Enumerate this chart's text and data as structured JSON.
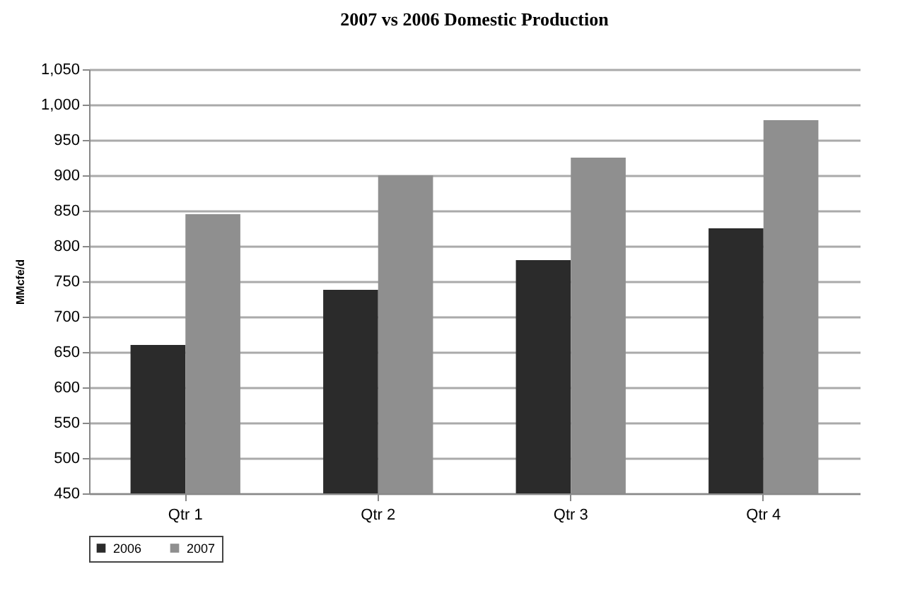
{
  "chart_data": {
    "type": "bar",
    "title": "2007 vs 2006 Domestic Production",
    "ylabel": "MMcfe/d",
    "categories": [
      "Qtr 1",
      "Qtr 2",
      "Qtr 3",
      "Qtr 4"
    ],
    "series": [
      {
        "name": "2006",
        "color": "#2b2b2b",
        "values": [
          660,
          738,
          780,
          825
        ]
      },
      {
        "name": "2007",
        "color": "#8f8f8f",
        "values": [
          845,
          900,
          925,
          978
        ]
      }
    ],
    "ylim": [
      450,
      1050
    ],
    "yticks": [
      450,
      500,
      550,
      600,
      650,
      700,
      750,
      800,
      850,
      900,
      950,
      {
        "value": 1000,
        "label": "1,000"
      },
      {
        "value": 1050,
        "label": "1,050"
      }
    ],
    "grid": "y",
    "legend": "bottom"
  }
}
